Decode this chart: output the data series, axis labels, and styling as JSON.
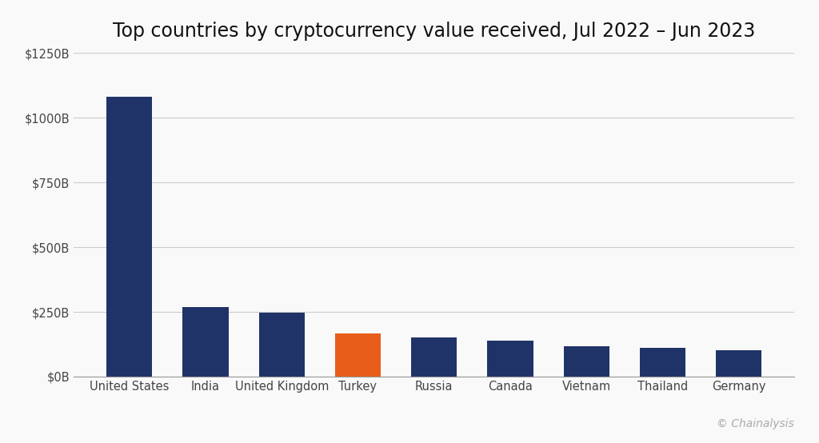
{
  "title": "Top countries by cryptocurrency value received, Jul 2022 – Jun 2023",
  "categories": [
    "United States",
    "India",
    "United Kingdom",
    "Turkey",
    "Russia",
    "Canada",
    "Vietnam",
    "Thailand",
    "Germany"
  ],
  "values": [
    1080,
    268,
    248,
    168,
    152,
    138,
    118,
    112,
    102
  ],
  "bar_colors": [
    "#1f3368",
    "#1f3368",
    "#1f3368",
    "#e85d1a",
    "#1f3368",
    "#1f3368",
    "#1f3368",
    "#1f3368",
    "#1f3368"
  ],
  "background_color": "#f9f9f9",
  "grid_color": "#cccccc",
  "ylim": [
    0,
    1250
  ],
  "yticks": [
    0,
    250,
    500,
    750,
    1000,
    1250
  ],
  "ytick_labels": [
    "$0B",
    "$250B",
    "$500B",
    "$750B",
    "$1000B",
    "$1250B"
  ],
  "title_fontsize": 17,
  "tick_fontsize": 10.5,
  "watermark": "© Chainalysis",
  "watermark_color": "#aaaaaa",
  "watermark_fontsize": 10,
  "bar_width": 0.6
}
